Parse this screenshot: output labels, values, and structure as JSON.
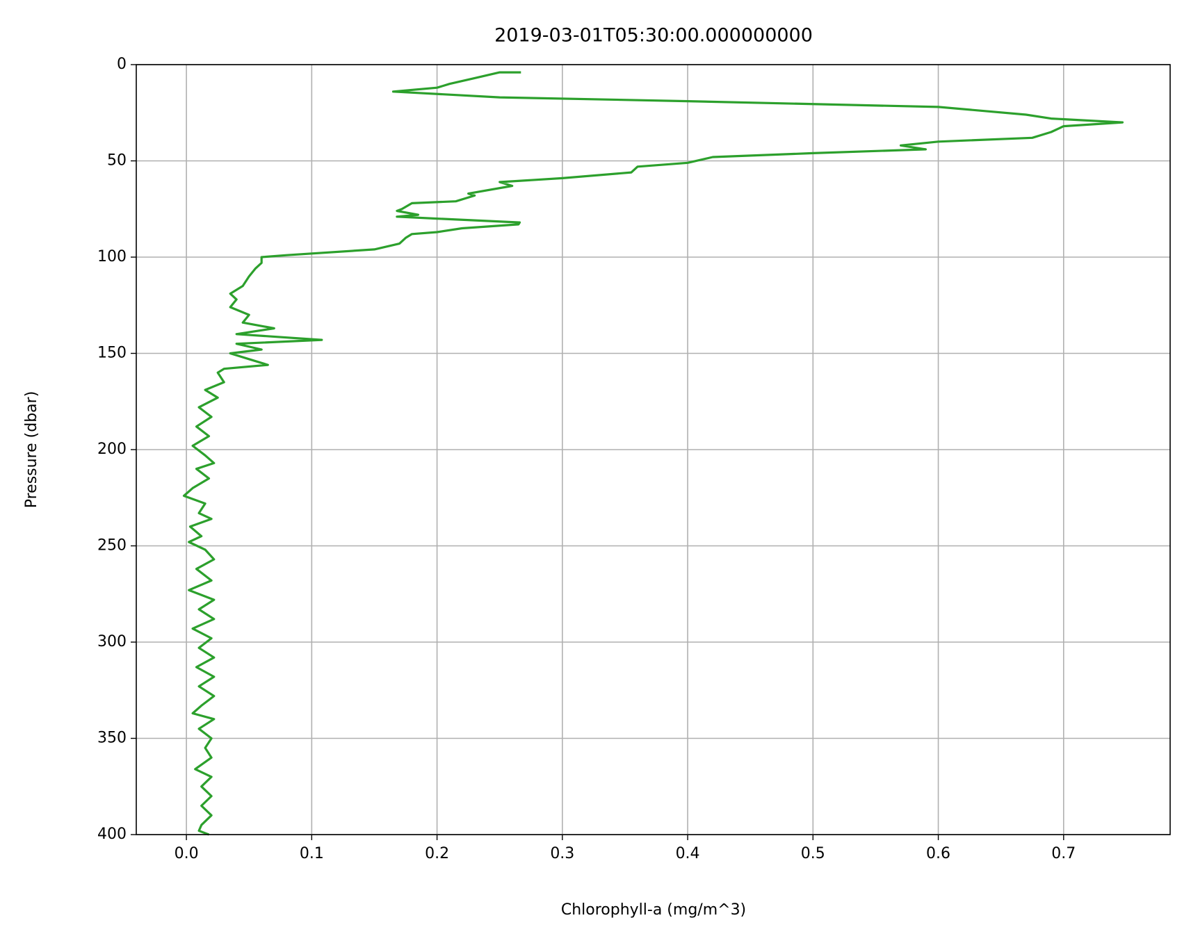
{
  "chart_data": {
    "type": "line",
    "title": "2019-03-01T05:30:00.000000000",
    "x_label": "Chlorophyll-a (mg/m^3)",
    "y_label": "Pressure (dbar)",
    "y": [
      4,
      4,
      7,
      10,
      12,
      14,
      17,
      19,
      22,
      26,
      28,
      30,
      32,
      35,
      38,
      40,
      42,
      44,
      46,
      48,
      51,
      53,
      56,
      59,
      61,
      63,
      67,
      68,
      71,
      72,
      75,
      76,
      78,
      79,
      80,
      82,
      83,
      85,
      87,
      88,
      90,
      93,
      96,
      99,
      100,
      103,
      106,
      110,
      115,
      119,
      122,
      126,
      130,
      134,
      137,
      140,
      143,
      145,
      148,
      150,
      153,
      156,
      158,
      160,
      165,
      169,
      173,
      178,
      183,
      188,
      193,
      198,
      203,
      207,
      210,
      215,
      220,
      224,
      228,
      233,
      236,
      240,
      245,
      248,
      252,
      257,
      262,
      268,
      273,
      278,
      283,
      288,
      293,
      298,
      303,
      308,
      313,
      318,
      323,
      328,
      333,
      337,
      340,
      345,
      350,
      355,
      360,
      366,
      370,
      375,
      380,
      385,
      390,
      395,
      398,
      400
    ],
    "series": [
      {
        "color": "#2ca02c",
        "values": [
          0.267,
          0.25,
          0.23,
          0.21,
          0.2,
          0.165,
          0.25,
          0.4,
          0.6,
          0.67,
          0.69,
          0.747,
          0.7,
          0.69,
          0.675,
          0.6,
          0.57,
          0.59,
          0.5,
          0.42,
          0.4,
          0.36,
          0.355,
          0.3,
          0.25,
          0.26,
          0.225,
          0.23,
          0.215,
          0.18,
          0.172,
          0.168,
          0.185,
          0.168,
          0.2,
          0.266,
          0.265,
          0.22,
          0.2,
          0.18,
          0.175,
          0.17,
          0.15,
          0.08,
          0.06,
          0.06,
          0.055,
          0.05,
          0.045,
          0.035,
          0.04,
          0.035,
          0.05,
          0.045,
          0.07,
          0.04,
          0.108,
          0.04,
          0.06,
          0.035,
          0.05,
          0.065,
          0.03,
          0.025,
          0.03,
          0.015,
          0.025,
          0.01,
          0.02,
          0.008,
          0.018,
          0.005,
          0.015,
          0.022,
          0.008,
          0.018,
          0.005,
          -0.002,
          0.015,
          0.01,
          0.02,
          0.003,
          0.012,
          0.002,
          0.015,
          0.022,
          0.008,
          0.02,
          0.002,
          0.022,
          0.01,
          0.022,
          0.005,
          0.02,
          0.01,
          0.022,
          0.008,
          0.022,
          0.01,
          0.022,
          0.012,
          0.005,
          0.022,
          0.01,
          0.02,
          0.015,
          0.02,
          0.007,
          0.02,
          0.012,
          0.02,
          0.012,
          0.02,
          0.012,
          0.01,
          0.018
        ]
      }
    ],
    "xlim": [
      -0.04,
      0.785
    ],
    "xticks": [
      {
        "value": 0,
        "label": "0.0"
      },
      0.1,
      0.2,
      0.3,
      0.4,
      0.5,
      0.6,
      0.7
    ],
    "ylim": [
      400,
      0
    ],
    "yticks": [
      0,
      50,
      100,
      150,
      200,
      250,
      300,
      350,
      400
    ],
    "grid": true
  }
}
